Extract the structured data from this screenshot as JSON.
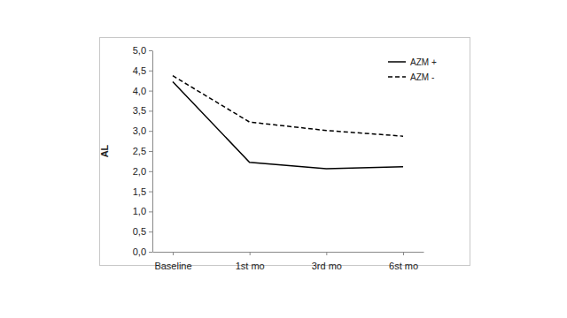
{
  "chart_data": {
    "type": "line",
    "categories": [
      "Baseline",
      "1st mo",
      "3rd mo",
      "6st mo"
    ],
    "series": [
      {
        "name": "AZM +",
        "color": "#000000",
        "line_style": "solid",
        "values": [
          4.22,
          2.22,
          2.06,
          2.11
        ]
      },
      {
        "name": "AZM -",
        "color": "#000000",
        "line_style": "dashed",
        "values": [
          4.37,
          3.22,
          3.01,
          2.87
        ]
      }
    ],
    "ylabel": "AL",
    "ylim": [
      0,
      5
    ],
    "yticks": [
      {
        "value": 0,
        "label": "0,0"
      },
      {
        "value": 0.5,
        "label": "0,5"
      },
      {
        "value": 1,
        "label": "1,0"
      },
      {
        "value": 1.5,
        "label": "1,5"
      },
      {
        "value": 2,
        "label": "2,0"
      },
      {
        "value": 2.5,
        "label": "2,5"
      },
      {
        "value": 3,
        "label": "3,0"
      },
      {
        "value": 3.5,
        "label": "3,5"
      },
      {
        "value": 4,
        "label": "4,0"
      },
      {
        "value": 4.5,
        "label": "4,5"
      },
      {
        "value": 5,
        "label": "5,0"
      }
    ],
    "legend": "top-right",
    "grid": false
  }
}
